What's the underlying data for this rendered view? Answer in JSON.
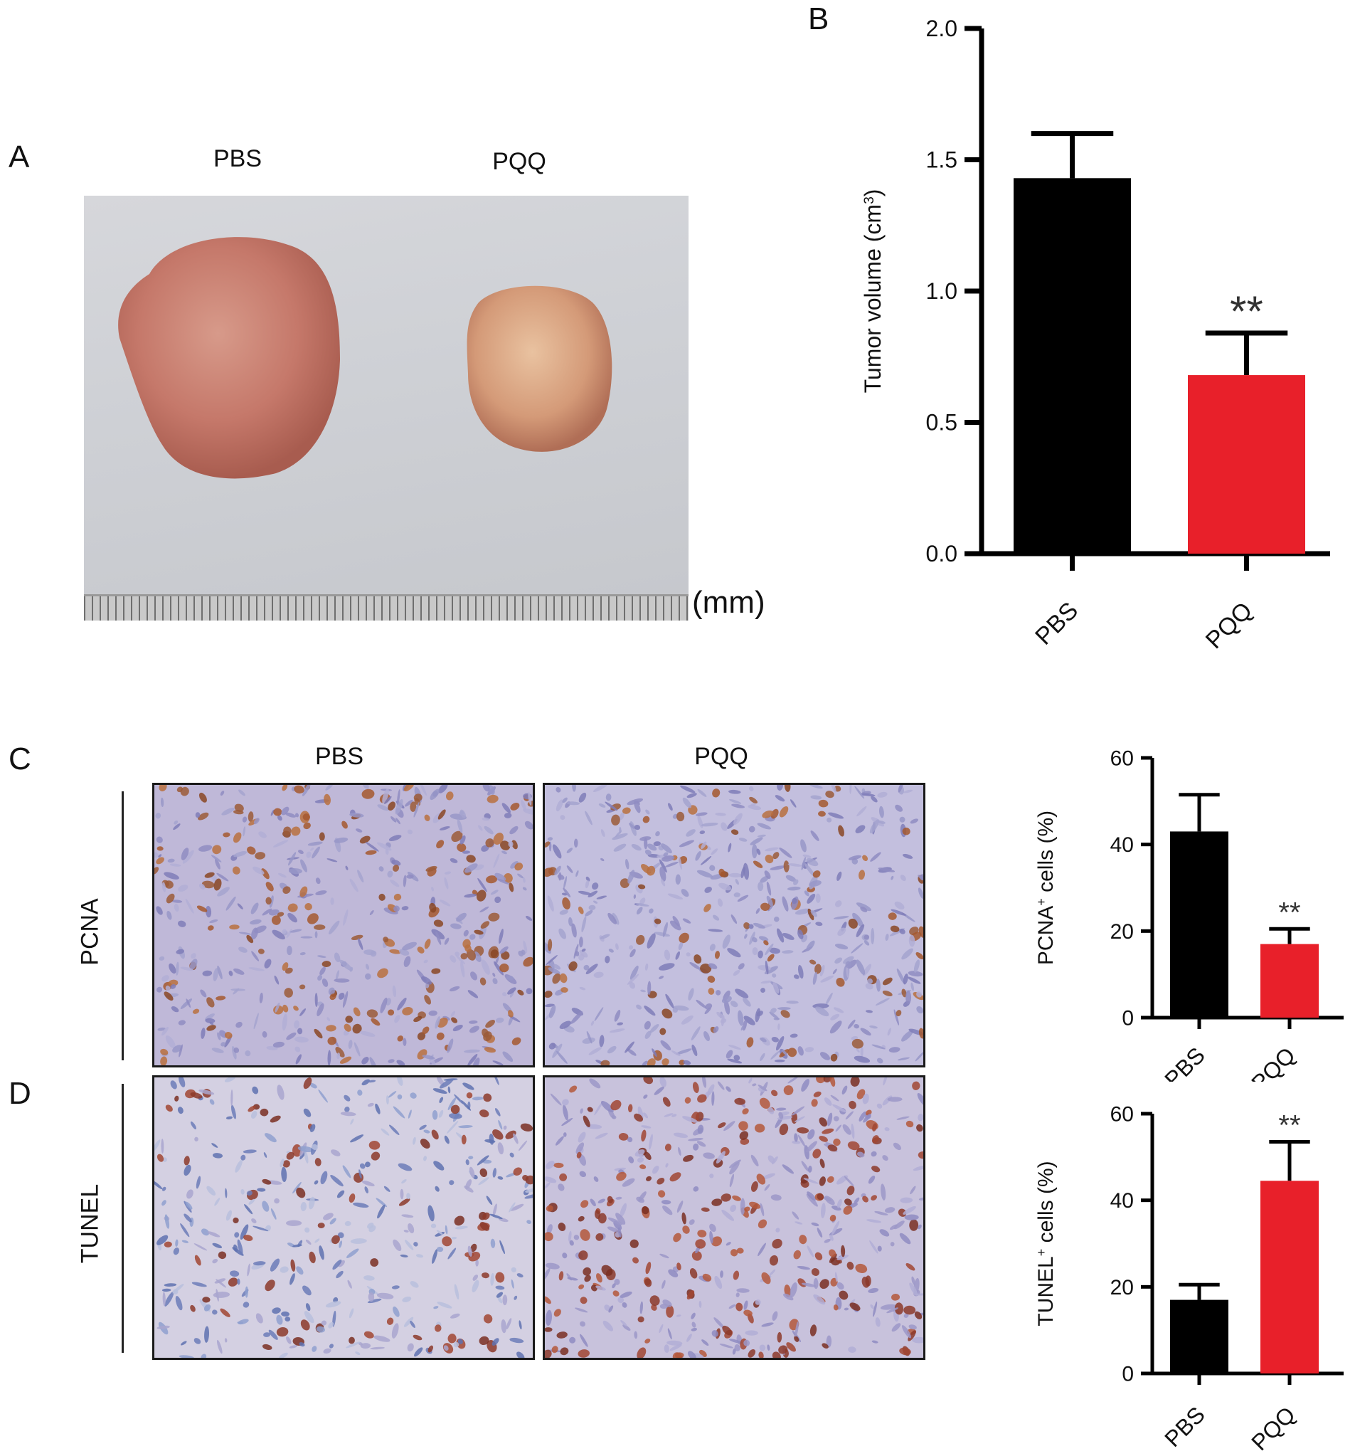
{
  "panels": {
    "a": {
      "letter": "A",
      "left_label": "PBS",
      "right_label": "PQQ",
      "unit": "(mm)"
    },
    "b": {
      "letter": "B"
    },
    "c": {
      "letter": "C",
      "left_label": "PBS",
      "right_label": "PQQ",
      "row_label": "PCNA"
    },
    "d": {
      "letter": "D",
      "row_label": "TUNEL"
    }
  },
  "colors": {
    "control": "#000000",
    "treatment": "#e8202a"
  },
  "chart_data": [
    {
      "id": "B",
      "type": "bar",
      "categories": [
        "PBS",
        "PQQ"
      ],
      "values": [
        1.43,
        0.68
      ],
      "errors": [
        0.17,
        0.16
      ],
      "ylabel": "Tumor volume (cm3)",
      "ylabel_main": "Tumor volume (cm",
      "ylabel_sup": "3",
      "ylabel_end": ")",
      "ylim": [
        0,
        2.0
      ],
      "yticks": [
        "0.0",
        "0.5",
        "1.0",
        "1.5",
        "2.0"
      ],
      "annotations": [
        {
          "category": "PQQ",
          "text": "**"
        }
      ]
    },
    {
      "id": "C",
      "type": "bar",
      "categories": [
        "PBS",
        "PQQ"
      ],
      "values": [
        43,
        17
      ],
      "errors": [
        8.5,
        3.5
      ],
      "ylabel": "PCNA+ cells (%)",
      "ylabel_main": "PCNA",
      "ylabel_sup": "+",
      "ylabel_end": " cells (%)",
      "ylim": [
        0,
        60
      ],
      "yticks": [
        "0",
        "20",
        "40",
        "60"
      ],
      "annotations": [
        {
          "category": "PQQ",
          "text": "**"
        }
      ]
    },
    {
      "id": "D",
      "type": "bar",
      "categories": [
        "PBS",
        "PQQ"
      ],
      "values": [
        17,
        44.5
      ],
      "errors": [
        3.5,
        9
      ],
      "ylabel": "TUNEL+ cells (%)",
      "ylabel_main": "TUNEL",
      "ylabel_sup": "+",
      "ylabel_end": " cells (%)",
      "ylim": [
        0,
        60
      ],
      "yticks": [
        "0",
        "20",
        "40",
        "60"
      ],
      "annotations": [
        {
          "category": "PQQ",
          "text": "**"
        }
      ]
    }
  ]
}
